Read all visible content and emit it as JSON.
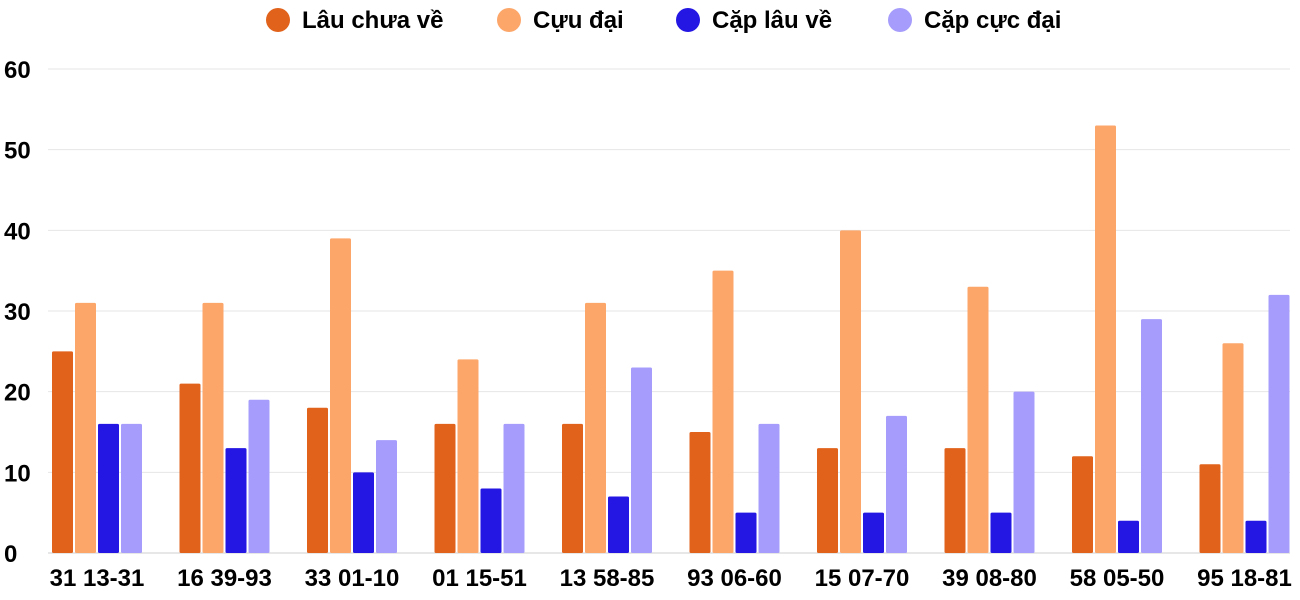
{
  "chart_data": {
    "type": "bar",
    "categories": [
      "31 13-31",
      "16 39-93",
      "33 01-10",
      "01 15-51",
      "13 58-85",
      "93 06-60",
      "15 07-70",
      "39 08-80",
      "58 05-50",
      "95 18-81"
    ],
    "series": [
      {
        "name": "Lâu chưa về",
        "color": "#e0621b",
        "values": [
          25,
          21,
          18,
          16,
          16,
          15,
          13,
          13,
          12,
          11
        ]
      },
      {
        "name": "Cựu đại",
        "color": "#fca66a",
        "values": [
          31,
          31,
          39,
          24,
          31,
          35,
          40,
          33,
          53,
          26
        ]
      },
      {
        "name": "Cặp lâu về",
        "color": "#2416e3",
        "values": [
          16,
          13,
          10,
          8,
          7,
          5,
          5,
          5,
          4,
          4
        ]
      },
      {
        "name": "Cặp cực đại",
        "color": "#a59cfb",
        "values": [
          16,
          19,
          14,
          16,
          23,
          16,
          17,
          20,
          29,
          32
        ]
      }
    ],
    "ylim": [
      0,
      60
    ],
    "yticks": [
      "0",
      "10",
      "20",
      "30",
      "40",
      "50",
      "60"
    ],
    "grid": true,
    "legend_position": "top-center",
    "title": "",
    "xlabel": "",
    "ylabel": ""
  }
}
